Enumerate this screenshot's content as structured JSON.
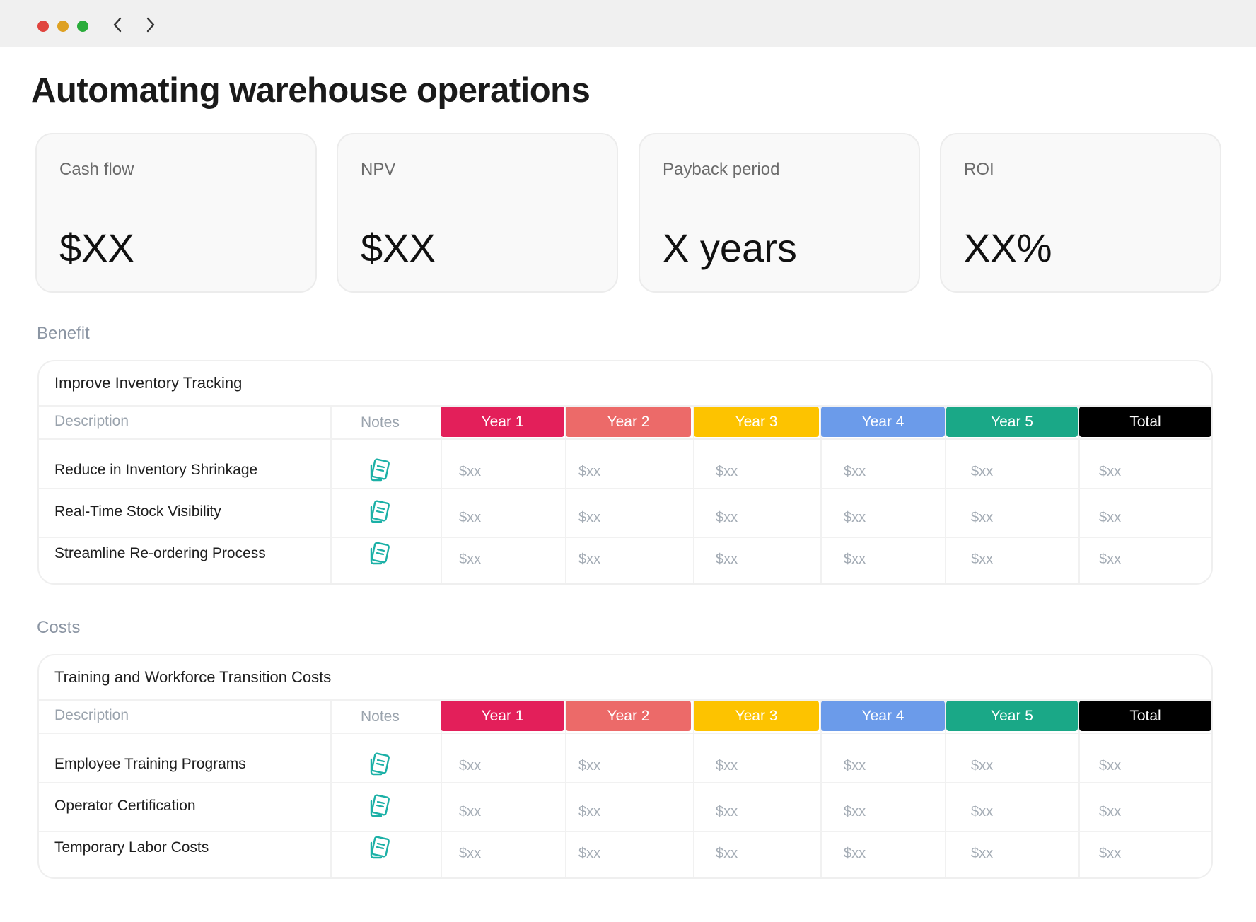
{
  "window": {
    "controls": [
      "close",
      "minimize",
      "zoom"
    ],
    "nav": [
      "chevron-left-icon",
      "chevron-right-icon"
    ]
  },
  "page_title": "Automating warehouse operations",
  "kpis": [
    {
      "label": "Cash flow",
      "value": "$XX"
    },
    {
      "label": "NPV",
      "value": "$XX"
    },
    {
      "label": "Payback period",
      "value": "X years"
    },
    {
      "label": "ROI",
      "value": "XX%"
    }
  ],
  "columns": {
    "description": "Description",
    "notes": "Notes",
    "years": [
      {
        "label": "Year 1",
        "color": "#e31f5a"
      },
      {
        "label": "Year 2",
        "color": "#ec6a69"
      },
      {
        "label": "Year 3",
        "color": "#fdc300"
      },
      {
        "label": "Year 4",
        "color": "#6b9bea"
      },
      {
        "label": "Year 5",
        "color": "#1aa887"
      },
      {
        "label": "Total",
        "color": "#000000"
      }
    ]
  },
  "sections": [
    {
      "label": "Benefit",
      "table_title": "Improve Inventory Tracking",
      "rows": [
        {
          "label": "Reduce in Inventory Shrinkage",
          "values": [
            "$xx",
            "$xx",
            "$xx",
            "$xx",
            "$xx",
            "$xx"
          ]
        },
        {
          "label": "Real-Time Stock Visibility",
          "values": [
            "$xx",
            "$xx",
            "$xx",
            "$xx",
            "$xx",
            "$xx"
          ]
        },
        {
          "label": "Streamline Re-ordering Process",
          "values": [
            "$xx",
            "$xx",
            "$xx",
            "$xx",
            "$xx",
            "$xx"
          ]
        }
      ]
    },
    {
      "label": "Costs",
      "table_title": "Training and Workforce Transition Costs",
      "rows": [
        {
          "label": "Employee Training Programs",
          "values": [
            "$xx",
            "$xx",
            "$xx",
            "$xx",
            "$xx",
            "$xx"
          ]
        },
        {
          "label": "Operator Certification",
          "values": [
            "$xx",
            "$xx",
            "$xx",
            "$xx",
            "$xx",
            "$xx"
          ]
        },
        {
          "label": "Temporary Labor Costs",
          "values": [
            "$xx",
            "$xx",
            "$xx",
            "$xx",
            "$xx",
            "$xx"
          ]
        }
      ]
    }
  ],
  "icons": {
    "notes": "notes-icon"
  },
  "colors": {
    "notes_icon": "#1bb0a6"
  }
}
